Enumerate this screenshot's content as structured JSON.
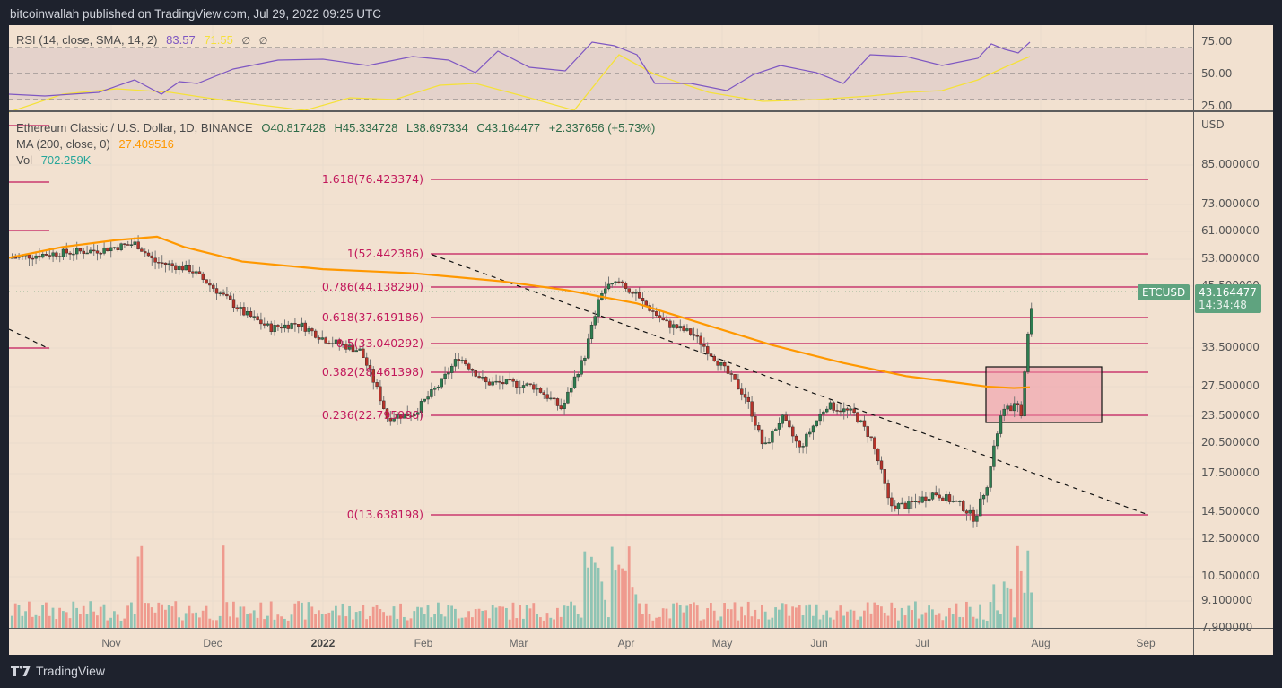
{
  "header": {
    "publisher": "bitcoinwallah published on TradingView.com, Jul 29, 2022 09:25 UTC"
  },
  "rsi": {
    "label": "RSI (14, close, SMA, 14, 2)",
    "value": "83.57",
    "sma_value": "71.55",
    "na1": "∅",
    "na2": "∅",
    "axis": [
      "75.00",
      "50.00",
      "25.00"
    ]
  },
  "main": {
    "symbol": "Ethereum Classic / U.S. Dollar, 1D, BINANCE",
    "open": "O40.817428",
    "high": "H45.334728",
    "low": "L38.697334",
    "close": "C43.164477",
    "change": "+2.337656 (+5.73%)",
    "ma_label": "MA (200, close, 0)",
    "ma_value": "27.409516",
    "vol_label": "Vol",
    "vol_value": "702.259K",
    "currency": "USD",
    "ticker": "ETCUSD",
    "last_price": "43.164477",
    "countdown": "14:34:48"
  },
  "colors": {
    "up": "#2e7d50",
    "down": "#b5332a",
    "ma": "#ff9800",
    "rsi": "#7e57c2",
    "rsi_sma": "#f5e13a",
    "fib": "#c2185b",
    "vol_up": "#8fc4b4",
    "vol_down": "#ef9a8e"
  },
  "footer": {
    "brand": "TradingView"
  },
  "chart_data": {
    "type": "candlestick",
    "title": "Ethereum Classic / U.S. Dollar, 1D, BINANCE",
    "ylabel": "USD",
    "y_scale": "log",
    "y_ticks": [
      "85.000000",
      "73.000000",
      "61.000000",
      "53.000000",
      "45.500000",
      "33.500000",
      "27.500000",
      "23.500000",
      "20.500000",
      "17.500000",
      "14.500000",
      "12.500000",
      "10.500000",
      "9.100000",
      "7.900000"
    ],
    "x_ticks": [
      "Nov",
      "Dec",
      "2022",
      "Feb",
      "Mar",
      "Apr",
      "May",
      "Jun",
      "Jul",
      "Aug",
      "Sep"
    ],
    "fib_levels": [
      {
        "ratio": "1.618",
        "price": "76.423374",
        "label": "1.618(76.423374)"
      },
      {
        "ratio": "1",
        "price": "52.442386",
        "label": "1(52.442386)"
      },
      {
        "ratio": "0.786",
        "price": "44.138290",
        "label": "0.786(44.138290)"
      },
      {
        "ratio": "0.618",
        "price": "37.619186",
        "label": "0.618(37.619186)"
      },
      {
        "ratio": "0.5",
        "price": "33.040292",
        "label": "0.5(33.040292)"
      },
      {
        "ratio": "0.382",
        "price": "28.461398",
        "label": "0.382(28.461398)"
      },
      {
        "ratio": "0.236",
        "price": "22.795986",
        "label": "0.236(22.795986)"
      },
      {
        "ratio": "0",
        "price": "13.638198",
        "label": "0(13.638198)"
      }
    ],
    "last": {
      "open": 40.817428,
      "high": 45.334728,
      "low": 38.697334,
      "close": 43.164477,
      "change": 2.337656,
      "change_pct": 5.73
    },
    "ma200_last": 27.409516,
    "volume_last": "702.259K",
    "rsi_last": 83.57,
    "rsi_sma_last": 71.55,
    "approx_closes_monthly": [
      {
        "month": "Oct 2021",
        "close": 53
      },
      {
        "month": "Nov 2021",
        "close": 45
      },
      {
        "month": "Dec 2021",
        "close": 33
      },
      {
        "month": "Jan 2022",
        "close": 25
      },
      {
        "month": "Feb 2022",
        "close": 28
      },
      {
        "month": "Mar 2022",
        "close": 46
      },
      {
        "month": "Apr 2022",
        "close": 30
      },
      {
        "month": "May 2022",
        "close": 22
      },
      {
        "month": "Jun 2022",
        "close": 14.5
      },
      {
        "month": "Jul 2022",
        "close": 43.16
      }
    ],
    "annotations": [
      "Descending dashed trendline",
      "Highlighted support zone ~22.5–29.5 USD (mid/late Jul 2022)"
    ]
  }
}
